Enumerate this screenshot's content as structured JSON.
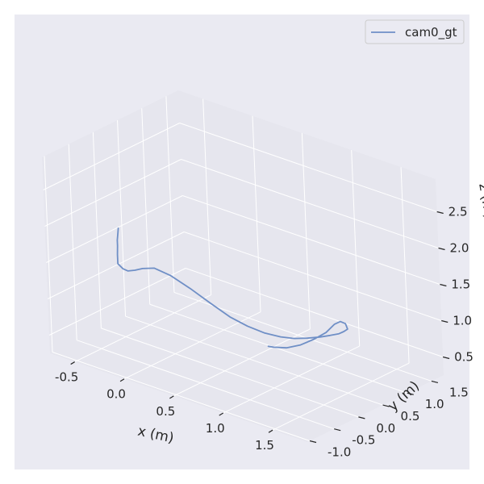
{
  "chart_data": {
    "type": "line",
    "projection": "3d",
    "title": "",
    "xlabel": "x (m)",
    "ylabel": "y (m)",
    "zlabel": "z (m)",
    "xlim": [
      -0.75,
      1.85
    ],
    "ylim": [
      -1.05,
      1.75
    ],
    "zlim": [
      0.25,
      2.95
    ],
    "xticks": [
      "-0.5",
      "0.0",
      "0.5",
      "1.0",
      "1.5"
    ],
    "yticks": [
      "-1.0",
      "-0.5",
      "0.0",
      "0.5",
      "1.0",
      "1.5"
    ],
    "zticks": [
      "0.5",
      "1.0",
      "1.5",
      "2.0",
      "2.5"
    ],
    "grid": true,
    "legend": "top-right",
    "colors": {
      "background": "#eaeaf2",
      "pane": "#e6e6ee",
      "grid": "#ffffff",
      "line": "#6f8fc6",
      "text": "#262626"
    },
    "series": [
      {
        "name": "cam0_gt",
        "x": [
          -0.38,
          -0.4,
          -0.42,
          -0.44,
          -0.47,
          -0.49,
          -0.47,
          -0.45,
          -0.4,
          -0.33,
          -0.22,
          -0.05,
          0.15,
          0.35,
          0.55,
          0.72,
          0.88,
          1.02,
          1.13,
          1.22,
          1.3,
          1.35,
          1.4,
          1.42,
          1.44,
          1.45,
          1.44,
          1.42,
          1.38,
          1.3,
          1.2,
          1.08,
          0.96,
          0.9
        ],
        "y": [
          -0.3,
          -0.27,
          -0.25,
          -0.21,
          -0.16,
          -0.12,
          -0.06,
          0.0,
          0.04,
          0.06,
          0.08,
          0.07,
          0.06,
          0.05,
          0.05,
          0.06,
          0.09,
          0.13,
          0.19,
          0.27,
          0.37,
          0.48,
          0.56,
          0.62,
          0.66,
          0.6,
          0.52,
          0.44,
          0.34,
          0.25,
          0.17,
          0.12,
          0.1,
          0.11
        ],
        "z": [
          1.9,
          1.82,
          1.7,
          1.6,
          1.45,
          1.3,
          1.22,
          1.18,
          1.2,
          1.25,
          1.3,
          1.28,
          1.2,
          1.1,
          1.0,
          0.95,
          0.92,
          0.92,
          0.93,
          0.95,
          0.97,
          0.98,
          1.0,
          1.02,
          1.05,
          1.15,
          1.2,
          1.18,
          1.08,
          0.98,
          0.88,
          0.8,
          0.76,
          0.74
        ]
      }
    ]
  }
}
